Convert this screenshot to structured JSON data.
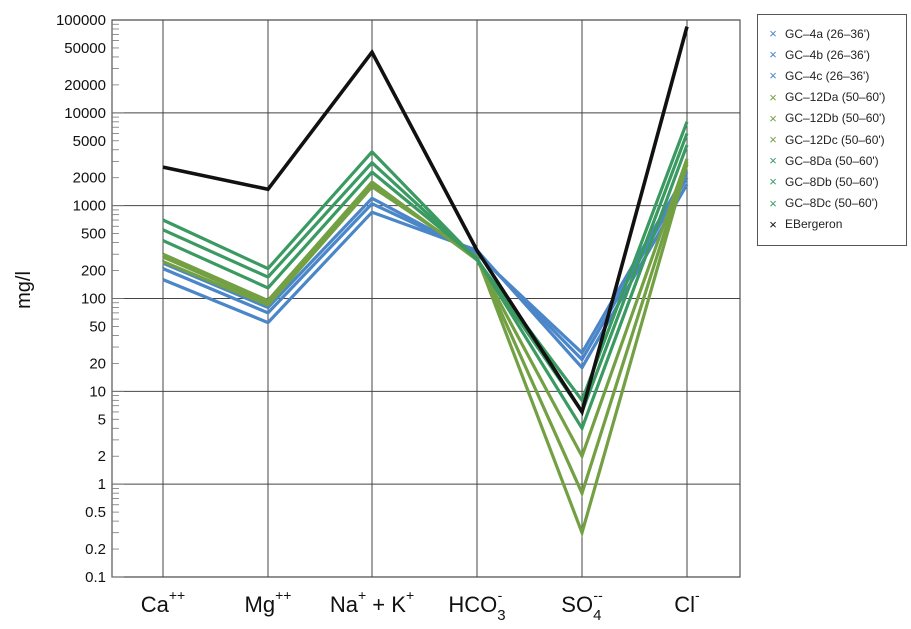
{
  "chart_data": {
    "type": "line",
    "ylabel": "mg/l",
    "yscale": "log",
    "ylim": [
      0.1,
      100000
    ],
    "grid": true,
    "legend_position": "top-right",
    "y_tick_labels": [
      "100000",
      "50000",
      "20000",
      "10000",
      "5000",
      "2000",
      "1000",
      "500",
      "200",
      "100",
      "50",
      "20",
      "10",
      "5",
      "2",
      "1",
      "0.5",
      "0.2",
      "0.1"
    ],
    "y_tick_values": [
      100000,
      50000,
      20000,
      10000,
      5000,
      2000,
      1000,
      500,
      200,
      100,
      50,
      20,
      10,
      5,
      2,
      1,
      0.5,
      0.2,
      0.1
    ],
    "categories": [
      {
        "base": "Ca",
        "sup": "++",
        "sub": ""
      },
      {
        "base": "Mg",
        "sup": "++",
        "sub": ""
      },
      {
        "base": "Na",
        "sup": "+",
        "mid": " + K",
        "sup2": "+",
        "sub": ""
      },
      {
        "base": "HCO",
        "sup": "-",
        "sub": "3"
      },
      {
        "base": "SO",
        "sup": "--",
        "sub": "4"
      },
      {
        "base": "Cl",
        "sup": "-",
        "sub": ""
      }
    ],
    "series": [
      {
        "name": "GC–4a (26–36')",
        "color": "#4a86c8",
        "values": [
          160,
          55,
          850,
          330,
          18,
          1700
        ]
      },
      {
        "name": "GC–4b (26–36')",
        "color": "#4a86c8",
        "values": [
          210,
          70,
          1050,
          310,
          22,
          2000
        ]
      },
      {
        "name": "GC–4c (26–36')",
        "color": "#4a86c8",
        "values": [
          240,
          80,
          1200,
          300,
          26,
          2300
        ]
      },
      {
        "name": "GC–12Da (50–60')",
        "color": "#72a043",
        "values": [
          250,
          85,
          1600,
          280,
          0.3,
          2800
        ]
      },
      {
        "name": "GC–12Db (50–60')",
        "color": "#72a043",
        "values": [
          280,
          90,
          1700,
          270,
          0.8,
          3000
        ]
      },
      {
        "name": "GC–12Dc (50–60')",
        "color": "#72a043",
        "values": [
          300,
          95,
          1800,
          260,
          2,
          3200
        ]
      },
      {
        "name": "GC–8Da (50–60')",
        "color": "#3a9a62",
        "values": [
          420,
          130,
          2300,
          270,
          4,
          4500
        ]
      },
      {
        "name": "GC–8Db (50–60')",
        "color": "#3a9a62",
        "values": [
          550,
          170,
          2900,
          265,
          6,
          6000
        ]
      },
      {
        "name": "GC–8Dc (50–60')",
        "color": "#3a9a62",
        "values": [
          700,
          210,
          3800,
          260,
          8,
          8000
        ]
      },
      {
        "name": "EBergeron",
        "color": "#111111",
        "values": [
          2600,
          1500,
          45000,
          330,
          6,
          85000
        ]
      }
    ]
  }
}
